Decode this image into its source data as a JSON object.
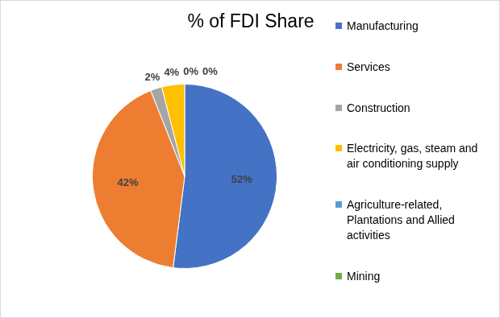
{
  "chart_data": {
    "type": "pie",
    "title": "% of FDI Share",
    "categories": [
      "Manufacturing",
      "Services",
      "Construction",
      "Electricity, gas, steam and air conditioning supply",
      "Agriculture-related, Plantations and Allied activities",
      "Mining"
    ],
    "values": [
      52,
      42,
      2,
      4,
      0,
      0
    ],
    "value_labels": [
      "52%",
      "42%",
      "2%",
      "4%",
      "0%",
      "0%"
    ],
    "colors": [
      "#4472c4",
      "#ed7d31",
      "#a5a5a5",
      "#ffc000",
      "#5b9bd5",
      "#70ad47"
    ],
    "legend": "right",
    "data_labels": true
  }
}
